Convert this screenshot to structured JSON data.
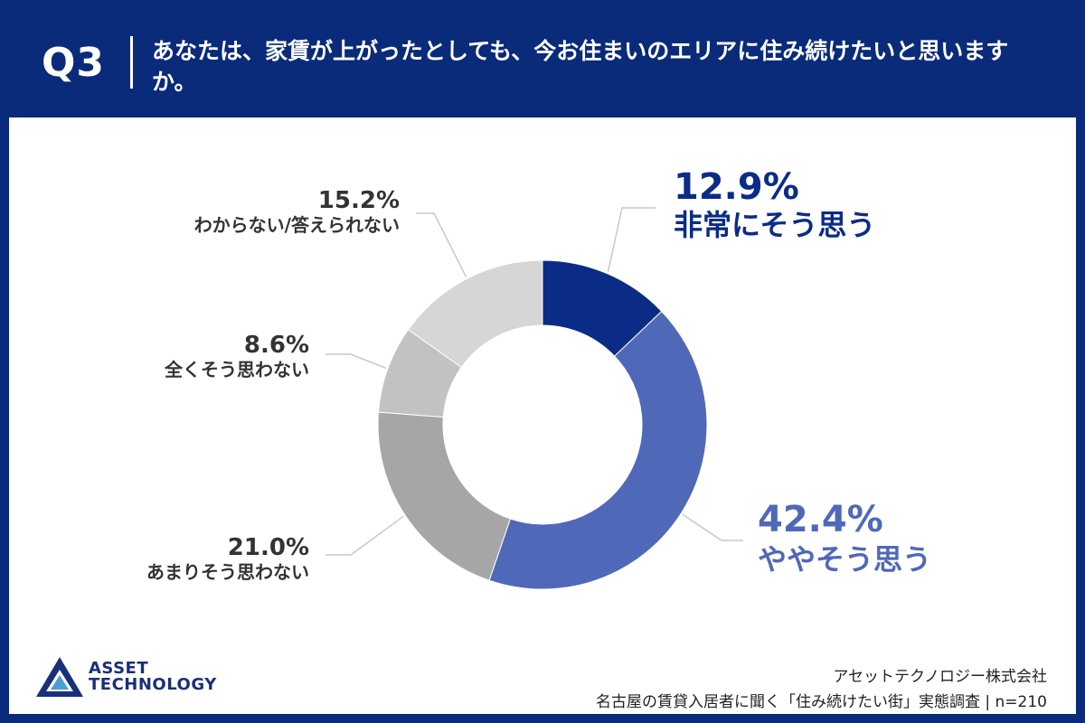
{
  "header": {
    "question_number": "Q3",
    "question_text": "あなたは、家賃が上がったとしても、今お住まいのエリアに住み続けたいと思いますか。"
  },
  "chart_data": {
    "type": "pie",
    "donut": true,
    "slices": [
      {
        "label": "非常にそう思う",
        "value": 12.9,
        "value_label": "12.9%",
        "color": "#0b2c86"
      },
      {
        "label": "ややそう思う",
        "value": 42.4,
        "value_label": "42.4%",
        "color": "#5068b8"
      },
      {
        "label": "あまりそう思わない",
        "value": 21.0,
        "value_label": "21.0%",
        "color": "#a6a6a6"
      },
      {
        "label": "全くそう思わない",
        "value": 8.6,
        "value_label": "8.6%",
        "color": "#c2c2c2"
      },
      {
        "label": "わからない/答えられない",
        "value": 15.2,
        "value_label": "15.2%",
        "color": "#d6d6d6"
      }
    ]
  },
  "footer": {
    "logo_line1": "ASSET",
    "logo_line2": "TECHNOLOGY",
    "company": "アセットテクノロジー株式会社",
    "survey": "名古屋の賃貸入居者に聞く「住み続けたい街」実態調査 | n=210"
  }
}
